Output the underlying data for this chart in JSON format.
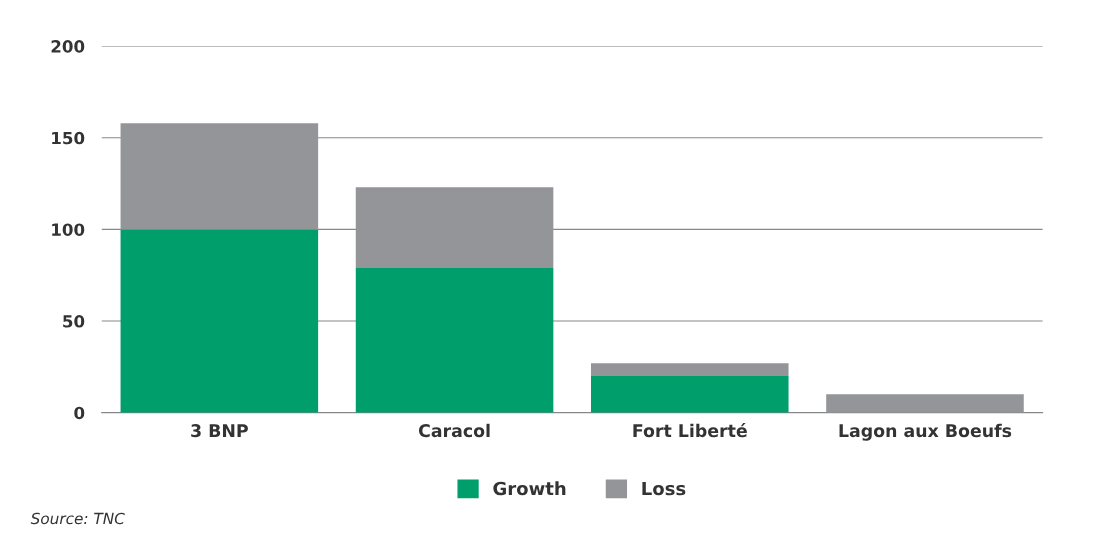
{
  "chart_data": {
    "type": "bar",
    "stacked": true,
    "categories": [
      "3 BNP",
      "Caracol",
      "Fort Liberté",
      "Lagon aux Boeufs"
    ],
    "series": [
      {
        "name": "Growth",
        "color": "#009e6b",
        "values": [
          100,
          79,
          20,
          0
        ]
      },
      {
        "name": "Loss",
        "color": "#939598",
        "values": [
          58,
          44,
          7,
          10
        ]
      }
    ],
    "ylim": [
      0,
      200
    ],
    "yticks": [
      0,
      50,
      100,
      150,
      200
    ],
    "grid": "y",
    "legend": "bottom",
    "annotations": [
      "Source: TNC"
    ]
  }
}
